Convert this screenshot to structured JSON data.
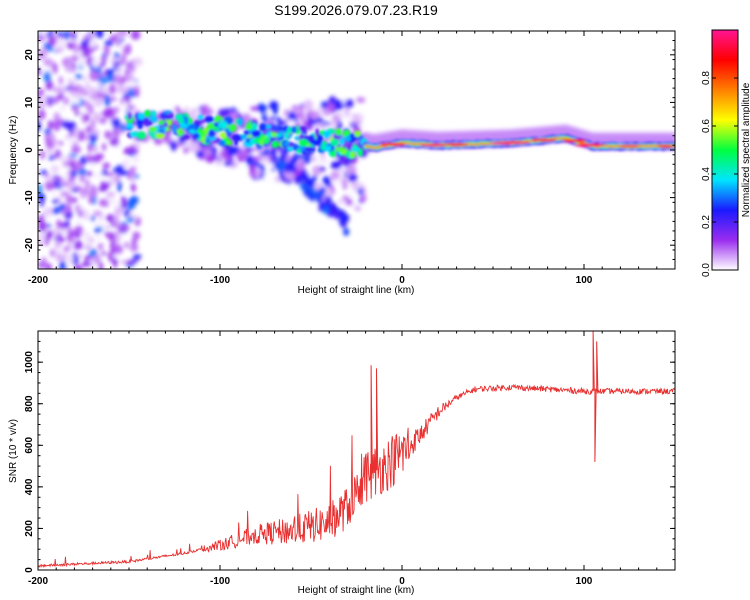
{
  "title": "S199.2026.079.07.23.R19",
  "chart_data": [
    {
      "type": "heatmap",
      "xlabel": "Height of straight line (km)",
      "ylabel": "Frequency (Hz)",
      "xlim": [
        -200,
        150
      ],
      "ylim": [
        -25,
        25
      ],
      "xticks": [
        "-200",
        "-100",
        "0",
        "100"
      ],
      "yticks": [
        "-20",
        "-10",
        "0",
        "10",
        "20"
      ],
      "colorbar": {
        "label": "Normalized spectral amplitude",
        "range": [
          0,
          1
        ],
        "ticks": [
          "0.0",
          "0.2",
          "0.4",
          "0.6",
          "0.8"
        ],
        "colors": [
          "#ffffff",
          "#9a2cf0",
          "#1a1aff",
          "#00e5ff",
          "#00ff40",
          "#ffff00",
          "#ff7f00",
          "#ff0000",
          "#ff1493"
        ]
      },
      "ridge": [
        {
          "x": -150,
          "y": 5.5,
          "amp": 0.55
        },
        {
          "x": -120,
          "y": 5.0,
          "amp": 0.5
        },
        {
          "x": -90,
          "y": 3.5,
          "amp": 0.4
        },
        {
          "x": -60,
          "y": 2.5,
          "amp": 0.35
        },
        {
          "x": -30,
          "y": 1.5,
          "amp": 0.45
        },
        {
          "x": -15,
          "y": 0.5,
          "amp": 0.7
        },
        {
          "x": 0,
          "y": 1.5,
          "amp": 0.75
        },
        {
          "x": 20,
          "y": 1.0,
          "amp": 0.9
        },
        {
          "x": 60,
          "y": 1.5,
          "amp": 0.95
        },
        {
          "x": 90,
          "y": 2.5,
          "amp": 0.9
        },
        {
          "x": 105,
          "y": 0.8,
          "amp": 0.9
        },
        {
          "x": 150,
          "y": 0.8,
          "amp": 0.9
        }
      ],
      "noise_region": {
        "x_start": -200,
        "x_end": -145
      }
    },
    {
      "type": "line",
      "xlabel": "Height of straight line (km)",
      "ylabel": "SNR (10 * v/v)",
      "xlim": [
        -200,
        150
      ],
      "ylim": [
        0,
        1150
      ],
      "xticks": [
        "-200",
        "-100",
        "0",
        "100"
      ],
      "yticks": [
        "0",
        "200",
        "400",
        "600",
        "800",
        "1000"
      ],
      "color": "#e83030",
      "series_envelope": [
        {
          "x": -200,
          "y": 20
        },
        {
          "x": -150,
          "y": 40
        },
        {
          "x": -120,
          "y": 80
        },
        {
          "x": -100,
          "y": 120
        },
        {
          "x": -80,
          "y": 170
        },
        {
          "x": -60,
          "y": 190
        },
        {
          "x": -40,
          "y": 230
        },
        {
          "x": -30,
          "y": 300
        },
        {
          "x": -20,
          "y": 450
        },
        {
          "x": -10,
          "y": 500
        },
        {
          "x": 0,
          "y": 560
        },
        {
          "x": 10,
          "y": 650
        },
        {
          "x": 20,
          "y": 760
        },
        {
          "x": 30,
          "y": 830
        },
        {
          "x": 40,
          "y": 870
        },
        {
          "x": 60,
          "y": 880
        },
        {
          "x": 80,
          "y": 870
        },
        {
          "x": 100,
          "y": 860
        },
        {
          "x": 150,
          "y": 860
        }
      ],
      "spikes": [
        {
          "x": -17,
          "y": 985
        },
        {
          "x": -14,
          "y": 970
        },
        {
          "x": 105,
          "y": 1150
        },
        {
          "x": 106,
          "y": 520
        },
        {
          "x": 107,
          "y": 1100
        }
      ]
    }
  ]
}
